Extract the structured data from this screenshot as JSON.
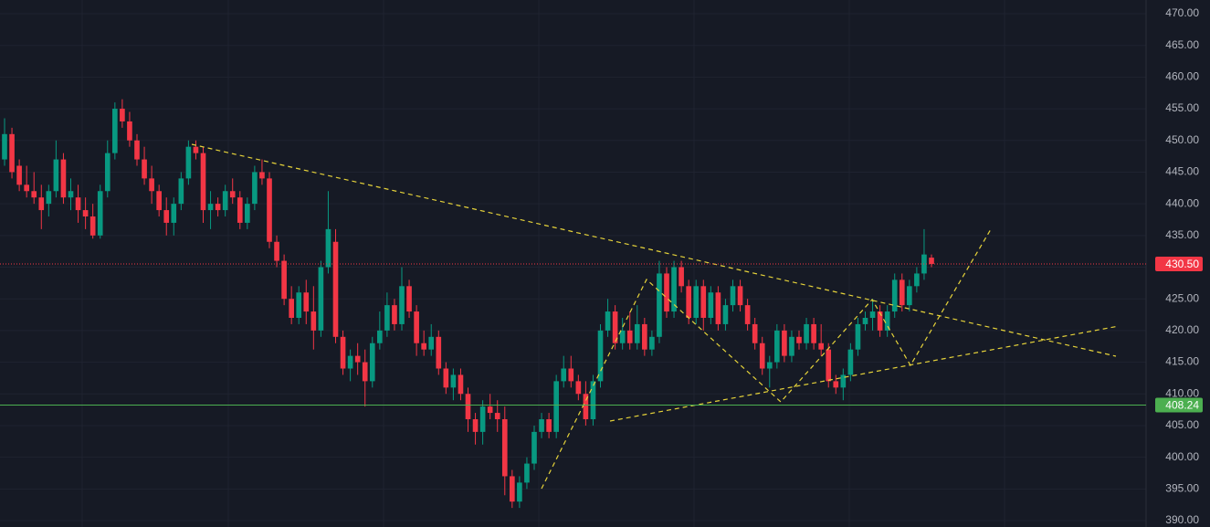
{
  "chart_data": {
    "type": "candlestick",
    "open": [
      447,
      451,
      446,
      443,
      442,
      441,
      440,
      442,
      447,
      441,
      441,
      439,
      438,
      435,
      442,
      448,
      455,
      453,
      450,
      447,
      444,
      442,
      439,
      437,
      440,
      444,
      449,
      448,
      439,
      440,
      439,
      442,
      441,
      437,
      440,
      445,
      444,
      434,
      431,
      425,
      422,
      426,
      423,
      420,
      430,
      434,
      419,
      414,
      416,
      415,
      412,
      418,
      420,
      424,
      421,
      427,
      423,
      418,
      417,
      419,
      414,
      411,
      413,
      410,
      406,
      404,
      408,
      407,
      406,
      397,
      393,
      396,
      399,
      404,
      406,
      404,
      412,
      414,
      412,
      410,
      406,
      412,
      420,
      423,
      418,
      420,
      418,
      421,
      417,
      419,
      429,
      423,
      430,
      427,
      422,
      427,
      422,
      426,
      421,
      424,
      427,
      424,
      421,
      418,
      414,
      415,
      420,
      416,
      419,
      418,
      421,
      418,
      417,
      412,
      411,
      413,
      417,
      421,
      422,
      423,
      420,
      423,
      428,
      424,
      427,
      429,
      431.5
    ],
    "high": [
      453.5,
      452,
      447,
      446,
      445,
      443,
      443,
      450,
      448,
      444,
      443,
      441,
      440,
      443,
      450,
      456,
      456.5,
      454.5,
      451,
      449,
      446,
      443,
      441,
      441,
      445,
      450,
      450,
      449,
      442,
      441,
      443,
      444,
      442,
      441,
      446,
      447,
      445,
      435,
      432,
      427,
      427,
      428,
      427,
      431,
      442,
      436,
      420,
      417,
      418,
      417,
      419,
      423,
      426,
      425,
      430,
      428,
      424,
      420,
      421,
      420,
      415,
      414,
      414,
      411,
      407,
      409,
      410,
      409,
      408,
      398,
      397,
      400,
      405,
      407,
      407,
      413,
      416,
      416,
      413,
      412,
      413,
      421,
      425,
      424,
      422,
      423,
      424,
      422,
      420,
      431,
      430,
      431,
      431,
      428,
      428,
      428,
      427,
      427,
      425,
      428,
      428,
      425,
      422,
      419,
      416,
      421,
      421,
      420,
      420,
      422,
      422,
      421,
      418,
      413,
      414,
      418,
      422,
      423,
      425,
      424,
      424,
      429,
      429,
      428,
      430,
      436,
      432
    ],
    "low": [
      446,
      444,
      442,
      441,
      440,
      436,
      438,
      441,
      440,
      439,
      437,
      436,
      434.5,
      434.5,
      441,
      447,
      452,
      449,
      446,
      443,
      440,
      438,
      435,
      435,
      439,
      443,
      447,
      437,
      436,
      438,
      438,
      440,
      436,
      436,
      439,
      443,
      433,
      430,
      424,
      421,
      421,
      421,
      417,
      419,
      429,
      418,
      413,
      412,
      413,
      408,
      411,
      417,
      419,
      420,
      420,
      422,
      416,
      416,
      416,
      413,
      410,
      409,
      409,
      404,
      402,
      402,
      406,
      404,
      394,
      392,
      392,
      395,
      398,
      403,
      403,
      403,
      411,
      411,
      409,
      405,
      405,
      411,
      419,
      417,
      417,
      417,
      417,
      416,
      416,
      418,
      422,
      422,
      426,
      421,
      421,
      420,
      421,
      420,
      420,
      423,
      423,
      420,
      417,
      413,
      411,
      414,
      415,
      415,
      417,
      417,
      417,
      416,
      411,
      410,
      409,
      412,
      416,
      420,
      420,
      419,
      419,
      422,
      423,
      423,
      426,
      428,
      430
    ],
    "close": [
      451,
      445,
      443,
      442,
      441,
      439,
      442,
      447,
      441,
      442,
      439,
      438,
      435,
      442,
      448,
      455,
      453,
      450,
      447,
      444,
      442,
      439,
      437,
      440,
      444,
      449,
      448,
      439,
      440,
      439,
      442,
      441,
      437,
      440,
      445,
      444,
      434,
      431,
      425,
      422,
      426,
      423,
      420,
      430,
      436,
      419,
      414,
      416,
      415,
      412,
      418,
      420,
      424,
      421,
      427,
      423,
      418,
      417,
      419,
      414,
      411,
      413,
      410,
      406,
      404,
      408,
      407,
      406,
      397,
      393,
      396,
      399,
      404,
      406,
      404,
      412,
      414,
      412,
      410,
      406,
      412,
      420,
      423,
      418,
      420,
      418,
      421,
      417,
      419,
      429,
      423,
      430,
      427,
      422,
      427,
      422,
      426,
      421,
      424,
      427,
      424,
      421,
      418,
      414,
      415,
      420,
      416,
      419,
      418,
      421,
      418,
      417,
      412,
      411,
      413,
      417,
      421,
      422,
      423,
      420,
      423,
      428,
      424,
      427,
      429,
      432,
      430.5
    ],
    "up_color": "#089981",
    "down_color": "#f23645",
    "ylim": [
      390,
      470
    ],
    "yticks": [
      {
        "value": 390,
        "label": "390.00"
      },
      {
        "value": 395,
        "label": "395.00"
      },
      {
        "value": 400,
        "label": "400.00"
      },
      {
        "value": 405,
        "label": "405.00"
      },
      {
        "value": 410,
        "label": "410.00"
      },
      {
        "value": 415,
        "label": "415.00"
      },
      {
        "value": 420,
        "label": "420.00"
      },
      {
        "value": 425,
        "label": "425.00"
      },
      {
        "value": 430,
        "label": "430.00"
      },
      {
        "value": 435,
        "label": "435.00"
      },
      {
        "value": 440,
        "label": "440.00"
      },
      {
        "value": 445,
        "label": "445.00"
      },
      {
        "value": 450,
        "label": "450.00"
      },
      {
        "value": 455,
        "label": "455.00"
      },
      {
        "value": 460,
        "label": "460.00"
      },
      {
        "value": 465,
        "label": "465.00"
      },
      {
        "value": 470,
        "label": "470.00"
      }
    ],
    "grid": true,
    "price_lines": [
      {
        "value": {
          "value": 430.5,
          "label": "430.50"
        },
        "color": "#f23645",
        "style": "dotted"
      },
      {
        "value": 408.24,
        "color": "#4caf50",
        "style": "solid"
      }
    ]
  }
}
